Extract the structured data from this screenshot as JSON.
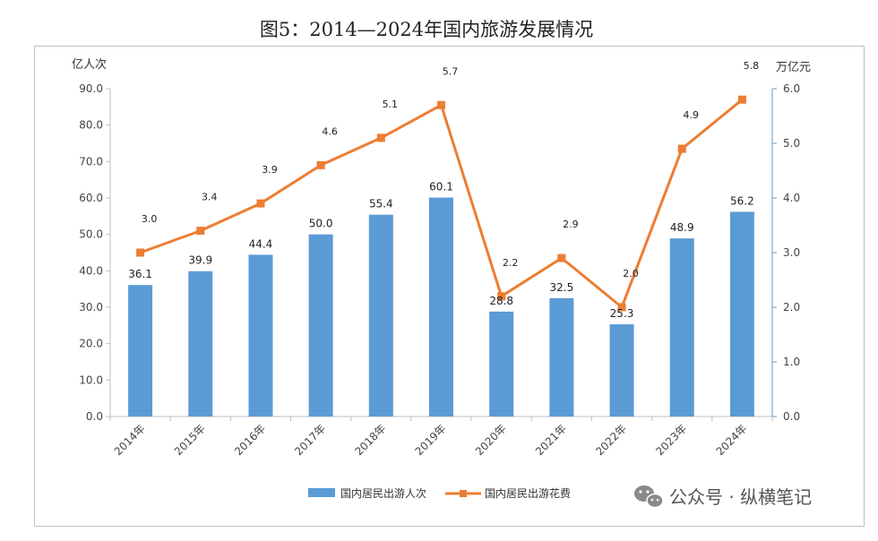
{
  "chart_data": {
    "type": "bar",
    "title": "图5：2014—2024年国内旅游发展情况",
    "ylabel_left": "亿人次",
    "ylabel_right": "万亿元",
    "categories": [
      "2014年",
      "2015年",
      "2016年",
      "2017年",
      "2018年",
      "2019年",
      "2020年",
      "2021年",
      "2022年",
      "2023年",
      "2024年"
    ],
    "series": [
      {
        "name": "国内居民出游人次",
        "type": "bar",
        "axis": "left",
        "color": "#5B9BD5",
        "values": [
          36.1,
          39.9,
          44.4,
          50.0,
          55.4,
          60.1,
          28.8,
          32.5,
          25.3,
          48.9,
          56.2
        ],
        "labels": [
          "36.1",
          "39.9",
          "44.4",
          "50.0",
          "55.4",
          "60.1",
          "28.8",
          "32.5",
          "25.3",
          "48.9",
          "56.2"
        ]
      },
      {
        "name": "国内居民出游花费",
        "type": "line",
        "axis": "right",
        "color": "#ED7D31",
        "values": [
          3.0,
          3.4,
          3.9,
          4.6,
          5.1,
          5.7,
          2.2,
          2.9,
          2.0,
          4.9,
          5.8
        ],
        "labels": [
          "3.0",
          "3.4",
          "3.9",
          "4.6",
          "5.1",
          "5.7",
          "2.2",
          "2.9",
          "2.0",
          "4.9",
          "5.8"
        ]
      }
    ],
    "ylim_left": [
      0,
      90
    ],
    "yticks_left": [
      "0.0",
      "10.0",
      "20.0",
      "30.0",
      "40.0",
      "50.0",
      "60.0",
      "70.0",
      "80.0",
      "90.0"
    ],
    "ylim_right": [
      0,
      6
    ],
    "yticks_right": [
      "0.0",
      "1.0",
      "2.0",
      "3.0",
      "4.0",
      "5.0",
      "6.0"
    ],
    "grid": false,
    "legend": "bottom"
  },
  "watermark": {
    "text": "公众号 · 纵横笔记",
    "icon": "wechat-icon"
  }
}
